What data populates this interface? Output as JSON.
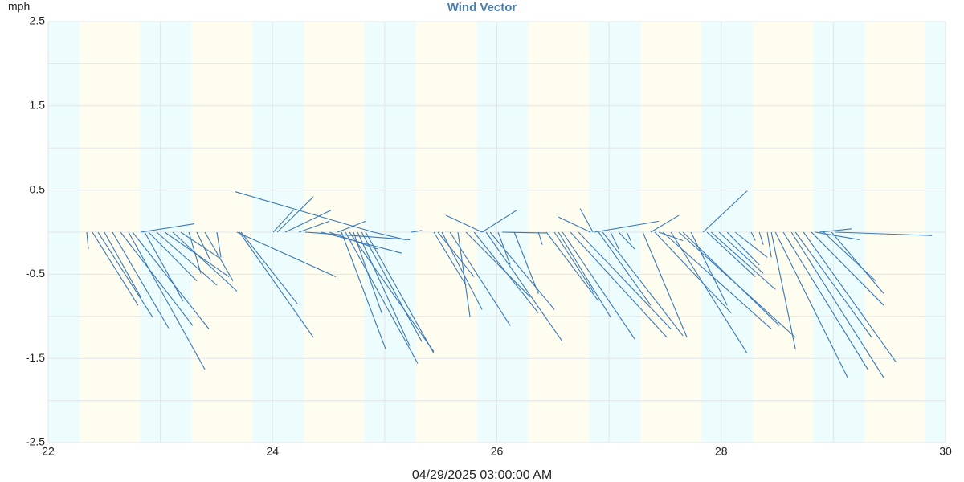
{
  "chart_data": {
    "type": "vector",
    "title": "Wind Vector",
    "y_label": "mph",
    "x_label": "04/29/2025 03:00:00 AM",
    "xlim": [
      22,
      30
    ],
    "xticks": [
      22,
      24,
      26,
      28,
      30
    ],
    "ylim": [
      -2.5,
      2.5
    ],
    "yticks": [
      2.5,
      1.5,
      0.5,
      -0.5,
      -1.5,
      -2.5
    ],
    "grid": true,
    "color": "#3a78b5",
    "day_color": "#fefdf0",
    "night_color": "#edfcfc",
    "night_bands": [
      [
        22,
        22.28
      ],
      [
        22.82,
        23.28
      ],
      [
        23.82,
        24.28
      ],
      [
        24.82,
        25.28
      ],
      [
        25.82,
        26.28
      ],
      [
        26.82,
        27.28
      ],
      [
        27.82,
        28.28
      ],
      [
        28.82,
        29.28
      ],
      [
        29.82,
        30
      ]
    ],
    "vectors": {
      "x": [
        22.344,
        22.394,
        22.444,
        22.501,
        22.573,
        22.645,
        22.716,
        22.752,
        22.824,
        22.86,
        22.895,
        22.967,
        23.039,
        23.11,
        23.182,
        23.254,
        23.325,
        23.397,
        23.504,
        23.683,
        23.705,
        23.719,
        24.901,
        24.042,
        24.006,
        24.113,
        24.235,
        24.292,
        24.579,
        24.615,
        24.65,
        24.686,
        24.722,
        24.758,
        24.794,
        24.83,
        24.507,
        24.436,
        24.901,
        25.238,
        25.438,
        25.474,
        25.51,
        25.868,
        25.582,
        25.653,
        25.725,
        25.797,
        25.868,
        25.904,
        25.94,
        26.011,
        26.047,
        26.155,
        26.37,
        26.441,
        26.513,
        26.549,
        26.585,
        26.656,
        26.728,
        26.835,
        26.857,
        26.871,
        26.907,
        26.943,
        27.014,
        27.086,
        27.158,
        27.301,
        27.372,
        27.444,
        27.408,
        27.48,
        27.552,
        27.623,
        27.659,
        27.731,
        27.838,
        27.874,
        27.91,
        27.981,
        28.053,
        28.125,
        28.34,
        28.411,
        28.447,
        28.483,
        28.554,
        28.626,
        28.662,
        28.734,
        28.805,
        28.877,
        28.841,
        28.913,
        28.984,
        29.02,
        28.268
      ],
      "x_end": [
        22.358,
        22.802,
        22.931,
        22.824,
        23.074,
        23.289,
        23.397,
        23.433,
        23.304,
        23.203,
        23.325,
        23.504,
        23.612,
        23.683,
        23.519,
        23.361,
        23.447,
        23.648,
        23.54,
        24.564,
        24.364,
        24.221,
        23.669,
        24.364,
        24.185,
        24.521,
        24.507,
        25.223,
        24.83,
        25.009,
        25.295,
        25.438,
        24.973,
        25.223,
        25.331,
        25.438,
        24.937,
        25.152,
        25.188,
        25.331,
        25.725,
        25.797,
        25.868,
        25.546,
        26.119,
        25.761,
        26.298,
        26.37,
        26.176,
        26.585,
        26.513,
        26.119,
        26.441,
        26.37,
        26.405,
        26.907,
        26.871,
        27.014,
        27.229,
        27.516,
        27.552,
        26.549,
        26.742,
        27.444,
        27.372,
        27.659,
        27.086,
        27.229,
        27.193,
        27.695,
        27.623,
        27.659,
        28.089,
        28.447,
        28.232,
        28.662,
        28.519,
        28.053,
        28.232,
        28.304,
        28.483,
        28.375,
        28.34,
        28.411,
        28.375,
        28.447,
        28.662,
        29.128,
        29.307,
        29.45,
        29.342,
        29.557,
        29.45,
        29.163,
        29.235,
        29.378,
        29.45,
        29.88,
        28.304
      ],
      "y_end": [
        -0.2,
        -0.87,
        -1.01,
        -0.77,
        -1.14,
        -1.11,
        -1.63,
        -1.15,
        0.1,
        -0.82,
        -0.58,
        -0.63,
        -0.53,
        -0.7,
        -0.3,
        -0.49,
        -0.34,
        -0.58,
        -0.3,
        -0.53,
        -1.25,
        -0.85,
        0.48,
        0.42,
        0.26,
        0.26,
        0.13,
        -0.09,
        0.13,
        -1.39,
        -1.56,
        -1.42,
        -0.96,
        -1.35,
        -1.3,
        -1.44,
        -0.2,
        -0.25,
        -0.09,
        0.02,
        -0.63,
        -0.53,
        -0.92,
        0.2,
        -1.11,
        -1.01,
        -0.77,
        -0.96,
        0.26,
        -1.3,
        -0.92,
        -0.39,
        -0.01,
        -0.73,
        -0.15,
        -0.82,
        -0.73,
        -1.01,
        -1.27,
        -1.25,
        -1.15,
        0.18,
        0.28,
        0.13,
        -0.87,
        -1.23,
        -0.2,
        -0.2,
        -0.1,
        -1.25,
        0.2,
        -0.1,
        -0.96,
        -1.15,
        -1.44,
        -1.25,
        -1.11,
        -0.87,
        0.49,
        -0.53,
        -0.68,
        -0.49,
        -0.39,
        -0.3,
        -0.15,
        -0.3,
        -1.39,
        -1.73,
        -1.63,
        -1.73,
        -1.25,
        -1.54,
        -0.87,
        0.04,
        -0.09,
        -0.58,
        -0.73,
        -0.04,
        -0.1
      ]
    }
  }
}
